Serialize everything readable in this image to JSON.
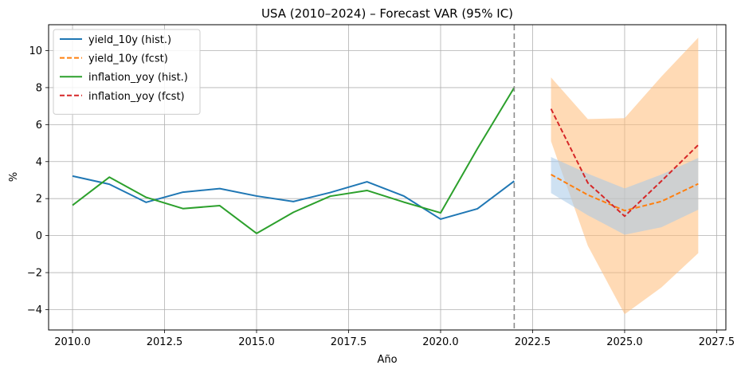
{
  "chart_data": {
    "type": "line",
    "title": "USA (2010–2024) – Forecast VAR (95% IC)",
    "xlabel": "Año",
    "ylabel": "%",
    "xlim": [
      2009.35,
      2027.75
    ],
    "ylim": [
      -5.1,
      11.4
    ],
    "xticks": [
      {
        "v": 2010.0,
        "label": "2010.0"
      },
      {
        "v": 2012.5,
        "label": "2012.5"
      },
      {
        "v": 2015.0,
        "label": "2015.0"
      },
      {
        "v": 2017.5,
        "label": "2017.5"
      },
      {
        "v": 2020.0,
        "label": "2020.0"
      },
      {
        "v": 2022.5,
        "label": "2022.5"
      },
      {
        "v": 2025.0,
        "label": "2025.0"
      },
      {
        "v": 2027.5,
        "label": "2027.5"
      }
    ],
    "yticks": [
      {
        "v": -4,
        "label": "−4"
      },
      {
        "v": -2,
        "label": "−2"
      },
      {
        "v": 0,
        "label": "0"
      },
      {
        "v": 2,
        "label": "2"
      },
      {
        "v": 4,
        "label": "4"
      },
      {
        "v": 6,
        "label": "6"
      },
      {
        "v": 8,
        "label": "8"
      },
      {
        "v": 10,
        "label": "10"
      }
    ],
    "grid": true,
    "legend_position": "top-left",
    "vline_x": 2022,
    "series": [
      {
        "name": "yield_10y (hist.)",
        "color": "#1f77b4",
        "dash": "solid",
        "x": [
          2010,
          2011,
          2012,
          2013,
          2014,
          2015,
          2016,
          2017,
          2018,
          2019,
          2020,
          2021,
          2022
        ],
        "values": [
          3.22,
          2.78,
          1.8,
          2.35,
          2.54,
          2.14,
          1.84,
          2.33,
          2.91,
          2.14,
          0.89,
          1.45,
          2.95
        ]
      },
      {
        "name": "yield_10y (fcst)",
        "color": "#ff7f0e",
        "dash": "dashed",
        "x": [
          2023,
          2024,
          2025,
          2026,
          2027
        ],
        "values": [
          3.3,
          2.2,
          1.35,
          1.85,
          2.8
        ]
      },
      {
        "name": "inflation_yoy (hist.)",
        "color": "#2ca02c",
        "dash": "solid",
        "x": [
          2010,
          2011,
          2012,
          2013,
          2014,
          2015,
          2016,
          2017,
          2018,
          2019,
          2020,
          2021,
          2022
        ],
        "values": [
          1.64,
          3.16,
          2.07,
          1.46,
          1.62,
          0.12,
          1.26,
          2.13,
          2.44,
          1.81,
          1.23,
          4.7,
          8.0
        ]
      },
      {
        "name": "inflation_yoy (fcst)",
        "color": "#d62728",
        "dash": "dashed",
        "x": [
          2023,
          2024,
          2025,
          2026,
          2027
        ],
        "values": [
          6.85,
          2.85,
          1.05,
          2.95,
          4.9
        ]
      }
    ],
    "bands": [
      {
        "color": "#ffbb78",
        "opacity": 0.55,
        "x": [
          2023,
          2024,
          2025,
          2026,
          2027
        ],
        "lower": [
          5.1,
          -0.55,
          -4.25,
          -2.8,
          -0.95
        ],
        "upper": [
          8.55,
          6.3,
          6.35,
          8.6,
          10.7
        ]
      },
      {
        "color": "#a6c8e8",
        "opacity": 0.55,
        "x": [
          2023,
          2024,
          2025,
          2026,
          2027
        ],
        "lower": [
          2.3,
          1.1,
          0.05,
          0.45,
          1.4
        ],
        "upper": [
          4.25,
          3.35,
          2.55,
          3.3,
          4.2
        ]
      }
    ]
  }
}
